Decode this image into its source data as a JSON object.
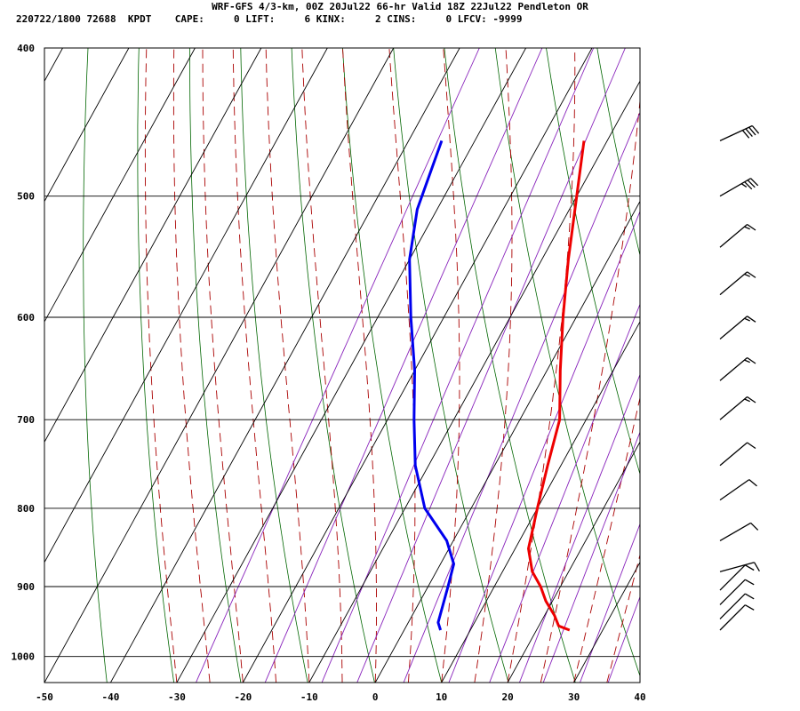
{
  "header": {
    "title": "WRF-GFS 4/3-km, 00Z 20Jul22 66-hr Valid 18Z 22Jul22 Pendleton OR",
    "stats": "220722/1800 72688  KPDT    CAPE:     0 LIFT:     6 KINX:     2 CINS:     0 LFCV: -9999"
  },
  "chart_data": {
    "type": "line",
    "title": "WRF-GFS 4/3-km, 00Z 20Jul22 66-hr Valid 18Z 22Jul22 Pendleton OR",
    "xlabel": "",
    "ylabel": "",
    "x_ticks": [
      "-50",
      "-40",
      "-30",
      "-20",
      "-10",
      "0",
      "10",
      "20",
      "30",
      "40"
    ],
    "y_ticks": [
      "400",
      "500",
      "600",
      "700",
      "800",
      "900",
      "1000"
    ],
    "xlim": [
      -50,
      40
    ],
    "ylim": [
      1040,
      400
    ],
    "y_scale": "log-pressure",
    "skew": "skew-T",
    "grid": true,
    "series": [
      {
        "key": "temperature",
        "color": "#ee0000",
        "points": [
          {
            "p": 961,
            "t": 25.0
          },
          {
            "p": 955,
            "t": 23.0
          },
          {
            "p": 940,
            "t": 21.5
          },
          {
            "p": 920,
            "t": 19.0
          },
          {
            "p": 900,
            "t": 17.0
          },
          {
            "p": 880,
            "t": 14.5
          },
          {
            "p": 850,
            "t": 12.0
          },
          {
            "p": 800,
            "t": 10.0
          },
          {
            "p": 750,
            "t": 8.0
          },
          {
            "p": 700,
            "t": 6.0
          },
          {
            "p": 650,
            "t": 2.0
          },
          {
            "p": 600,
            "t": -2.0
          },
          {
            "p": 550,
            "t": -6.0
          },
          {
            "p": 500,
            "t": -10.0
          },
          {
            "p": 460,
            "t": -13.5
          }
        ]
      },
      {
        "key": "dewpoint",
        "color": "#0000ee",
        "points": [
          {
            "p": 961,
            "t": 5.5
          },
          {
            "p": 950,
            "t": 4.5
          },
          {
            "p": 900,
            "t": 3.0
          },
          {
            "p": 870,
            "t": 2.0
          },
          {
            "p": 840,
            "t": -1.0
          },
          {
            "p": 800,
            "t": -7.0
          },
          {
            "p": 750,
            "t": -12.0
          },
          {
            "p": 700,
            "t": -16.0
          },
          {
            "p": 650,
            "t": -20.0
          },
          {
            "p": 600,
            "t": -25.0
          },
          {
            "p": 550,
            "t": -30.0
          },
          {
            "p": 510,
            "t": -33.0
          },
          {
            "p": 460,
            "t": -35.0
          }
        ]
      }
    ],
    "wind_barbs": [
      {
        "p": 961,
        "dir": 225,
        "kt": 10
      },
      {
        "p": 945,
        "dir": 225,
        "kt": 10
      },
      {
        "p": 925,
        "dir": 225,
        "kt": 10
      },
      {
        "p": 905,
        "dir": 225,
        "kt": 10
      },
      {
        "p": 880,
        "dir": 255,
        "kt": 10
      },
      {
        "p": 840,
        "dir": 240,
        "kt": 10
      },
      {
        "p": 790,
        "dir": 235,
        "kt": 10
      },
      {
        "p": 750,
        "dir": 230,
        "kt": 10
      },
      {
        "p": 700,
        "dir": 230,
        "kt": 15
      },
      {
        "p": 660,
        "dir": 230,
        "kt": 15
      },
      {
        "p": 620,
        "dir": 230,
        "kt": 15
      },
      {
        "p": 580,
        "dir": 230,
        "kt": 15
      },
      {
        "p": 540,
        "dir": 230,
        "kt": 15
      },
      {
        "p": 500,
        "dir": 240,
        "kt": 35
      },
      {
        "p": 460,
        "dir": 245,
        "kt": 40
      }
    ],
    "colors": {
      "grid": "#000000",
      "isotherm": "#000000",
      "dry_adiabat": "#006600",
      "moist_adiabat": "#aa0000",
      "mixing_ratio": "#8822bb",
      "temperature": "#ee0000",
      "dewpoint": "#0000ee"
    }
  }
}
